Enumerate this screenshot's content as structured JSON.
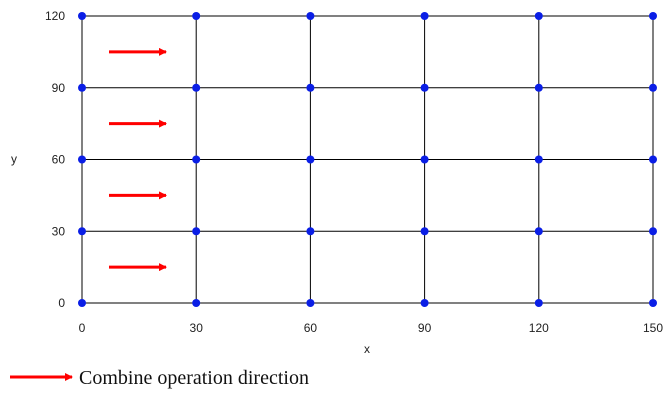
{
  "chart_data": {
    "type": "scatter",
    "title": "",
    "xlabel": "x",
    "ylabel": "y",
    "xlim": [
      0,
      150
    ],
    "ylim": [
      0,
      120
    ],
    "x_ticks": [
      0,
      30,
      60,
      90,
      120,
      150
    ],
    "y_ticks": [
      0,
      30,
      60,
      90,
      120
    ],
    "grid": true,
    "x_ticks_text": [
      "0",
      "30",
      "60",
      "90",
      "120",
      "150"
    ],
    "y_ticks_text": [
      "0",
      "30",
      "60",
      "90",
      "120"
    ],
    "series": [
      {
        "marker_color": "#0a1ee6",
        "points": [
          {
            "x": 0,
            "y": 0
          },
          {
            "x": 30,
            "y": 0
          },
          {
            "x": 60,
            "y": 0
          },
          {
            "x": 90,
            "y": 0
          },
          {
            "x": 120,
            "y": 0
          },
          {
            "x": 150,
            "y": 0
          },
          {
            "x": 0,
            "y": 30
          },
          {
            "x": 30,
            "y": 30
          },
          {
            "x": 60,
            "y": 30
          },
          {
            "x": 90,
            "y": 30
          },
          {
            "x": 120,
            "y": 30
          },
          {
            "x": 150,
            "y": 30
          },
          {
            "x": 0,
            "y": 60
          },
          {
            "x": 30,
            "y": 60
          },
          {
            "x": 60,
            "y": 60
          },
          {
            "x": 90,
            "y": 60
          },
          {
            "x": 120,
            "y": 60
          },
          {
            "x": 150,
            "y": 60
          },
          {
            "x": 0,
            "y": 90
          },
          {
            "x": 30,
            "y": 90
          },
          {
            "x": 60,
            "y": 90
          },
          {
            "x": 90,
            "y": 90
          },
          {
            "x": 120,
            "y": 90
          },
          {
            "x": 150,
            "y": 90
          },
          {
            "x": 0,
            "y": 120
          },
          {
            "x": 30,
            "y": 120
          },
          {
            "x": 60,
            "y": 120
          },
          {
            "x": 90,
            "y": 120
          },
          {
            "x": 120,
            "y": 120
          },
          {
            "x": 150,
            "y": 120
          }
        ]
      }
    ],
    "annotations": {
      "arrow_color": "#ff0000",
      "arrows": [
        {
          "y": 15,
          "direction": "right"
        },
        {
          "y": 45,
          "direction": "right"
        },
        {
          "y": 75,
          "direction": "right"
        },
        {
          "y": 105,
          "direction": "right"
        }
      ]
    },
    "legend": {
      "placement": "bottom-left",
      "text": "Combine operation direction"
    }
  }
}
